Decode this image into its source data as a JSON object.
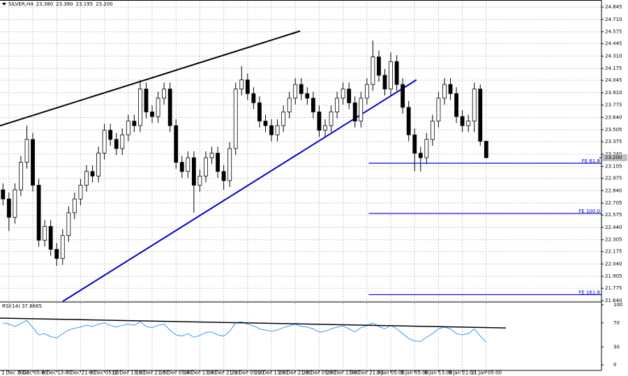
{
  "chart_data": {
    "type": "candlestick",
    "header_symbol": "SILVER,H4",
    "header_values": [
      "23.380",
      "23.380",
      "23.195",
      "23.200"
    ],
    "last_price_label": "23.200",
    "last_price": 23.2,
    "ylim": [
      21.632,
      24.922
    ],
    "yticks": [
      24.845,
      {
        "value": 24.71,
        "label": "24.710"
      },
      24.575,
      24.445,
      {
        "value": 24.31,
        "label": "24.310"
      },
      24.175,
      24.045,
      {
        "value": 23.91,
        "label": "23.910"
      },
      23.775,
      {
        "value": 23.64,
        "label": "23.640"
      },
      23.505,
      23.375,
      {
        "value": 23.24,
        "label": "23.240"
      },
      23.105,
      22.975,
      {
        "value": 22.84,
        "label": "22.840"
      },
      22.705,
      22.575,
      {
        "value": 22.44,
        "label": "22.440"
      },
      22.305,
      22.175,
      {
        "value": 22.04,
        "label": "22.040"
      },
      21.905,
      21.775,
      {
        "value": 21.64,
        "label": "21.640"
      }
    ],
    "xticks": [
      {
        "value": 1,
        "label": "1 Dec 2022"
      },
      {
        "value": 5,
        "label": "5 Dec 05:00"
      },
      {
        "value": 9,
        "label": "6 Dec 13:00"
      },
      {
        "value": 13,
        "label": "7 Dec 21:00"
      },
      {
        "value": 17,
        "label": "9 Dec 05:00"
      },
      {
        "value": 21,
        "label": "12 Dec 13:00"
      },
      {
        "value": 25,
        "label": "13 Dec 21:00"
      },
      {
        "value": 29,
        "label": "15 Dec 05:00"
      },
      {
        "value": 33,
        "label": "16 Dec 13:00"
      },
      {
        "value": 37,
        "label": "19 Dec 21:00"
      },
      {
        "value": 41,
        "label": "21 Dec 05:00"
      },
      {
        "value": 45,
        "label": "22 Dec 13:00"
      },
      {
        "value": 49,
        "label": "23 Dec 21:00"
      },
      {
        "value": 53,
        "label": "28 Dec 05:00"
      },
      {
        "value": 57,
        "label": "29 Dec 13:00"
      },
      {
        "value": 61,
        "label": "30 Dec 21:00"
      },
      {
        "value": 65,
        "label": "3 Jan 05:00"
      },
      {
        "value": 69,
        "label": "5 Jan 05:00"
      },
      {
        "value": 73,
        "label": "6 Jan 13:00"
      },
      {
        "value": 77,
        "label": "9 Jan 21:00"
      },
      {
        "value": 81,
        "label": "11 Jan 05:00"
      }
    ],
    "grid": true,
    "open": [
      22.85,
      22.75,
      22.55,
      22.85,
      23.15,
      23.4,
      22.9,
      22.3,
      22.45,
      22.2,
      22.1,
      22.35,
      22.6,
      22.75,
      22.9,
      23.05,
      23.0,
      23.25,
      23.5,
      23.4,
      23.3,
      23.45,
      23.6,
      23.55,
      23.95,
      23.7,
      23.65,
      23.85,
      23.95,
      23.55,
      23.15,
      23.05,
      23.2,
      22.9,
      23.0,
      23.2,
      23.25,
      23.05,
      22.95,
      23.3,
      23.95,
      24.05,
      23.9,
      23.8,
      23.6,
      23.55,
      23.45,
      23.55,
      23.7,
      23.85,
      24.0,
      23.9,
      23.85,
      23.7,
      23.5,
      23.55,
      23.7,
      23.85,
      23.95,
      23.8,
      23.6,
      23.85,
      24.0,
      24.3,
      24.1,
      23.95,
      24.25,
      24.0,
      23.75,
      23.45,
      23.25,
      23.2,
      23.4,
      23.6,
      23.85,
      24.0,
      23.9,
      23.65,
      23.55,
      23.6,
      23.95,
      23.38
    ],
    "high": [
      22.92,
      22.82,
      22.92,
      23.22,
      23.55,
      23.47,
      22.97,
      22.52,
      22.52,
      22.27,
      22.42,
      22.67,
      22.82,
      22.97,
      23.12,
      23.12,
      23.32,
      23.57,
      23.57,
      23.47,
      23.52,
      23.67,
      23.67,
      24.05,
      24.02,
      23.77,
      23.92,
      24.02,
      24.02,
      23.62,
      23.22,
      23.27,
      23.27,
      23.07,
      23.27,
      23.32,
      23.32,
      23.12,
      23.37,
      24.02,
      24.2,
      24.12,
      23.97,
      23.87,
      23.67,
      23.62,
      23.62,
      23.77,
      23.92,
      24.07,
      24.07,
      23.97,
      23.92,
      23.77,
      23.62,
      23.77,
      23.92,
      24.02,
      24.02,
      23.87,
      23.92,
      24.07,
      24.48,
      24.37,
      24.17,
      24.35,
      24.32,
      24.07,
      23.82,
      23.52,
      23.32,
      23.47,
      23.67,
      23.92,
      24.07,
      24.07,
      23.97,
      23.72,
      23.67,
      24.02,
      24.0,
      23.38
    ],
    "low": [
      22.68,
      22.4,
      22.48,
      22.78,
      23.08,
      22.83,
      22.23,
      22.23,
      22.13,
      22.02,
      22.03,
      22.28,
      22.53,
      22.68,
      22.83,
      22.93,
      22.93,
      23.18,
      23.33,
      23.23,
      23.23,
      23.38,
      23.48,
      23.48,
      23.63,
      23.58,
      23.58,
      23.78,
      23.48,
      23.08,
      22.98,
      22.98,
      22.6,
      22.83,
      22.93,
      23.13,
      22.98,
      22.85,
      22.88,
      23.23,
      23.88,
      23.83,
      23.73,
      23.53,
      23.48,
      23.38,
      23.38,
      23.48,
      23.63,
      23.78,
      23.83,
      23.78,
      23.63,
      23.43,
      23.43,
      23.48,
      23.63,
      23.78,
      23.73,
      23.53,
      23.53,
      23.78,
      23.93,
      24.03,
      23.88,
      23.88,
      23.93,
      23.68,
      23.38,
      23.05,
      23.05,
      23.13,
      23.33,
      23.53,
      23.78,
      23.83,
      23.58,
      23.48,
      23.48,
      23.48,
      23.33,
      23.195
    ],
    "close": [
      22.75,
      22.55,
      22.85,
      23.15,
      23.4,
      22.9,
      22.3,
      22.45,
      22.2,
      22.1,
      22.35,
      22.6,
      22.75,
      22.9,
      23.05,
      23.0,
      23.25,
      23.5,
      23.4,
      23.3,
      23.45,
      23.6,
      23.55,
      23.95,
      23.7,
      23.65,
      23.85,
      23.95,
      23.55,
      23.15,
      23.05,
      23.2,
      22.9,
      23.0,
      23.2,
      23.25,
      23.05,
      22.95,
      23.3,
      23.95,
      24.05,
      23.9,
      23.8,
      23.6,
      23.55,
      23.45,
      23.55,
      23.7,
      23.85,
      24.0,
      23.9,
      23.85,
      23.7,
      23.5,
      23.55,
      23.7,
      23.85,
      23.95,
      23.8,
      23.6,
      23.85,
      24.0,
      24.3,
      24.1,
      23.95,
      24.25,
      24.0,
      23.75,
      23.45,
      23.25,
      23.2,
      23.4,
      23.6,
      23.85,
      24.0,
      23.9,
      23.65,
      23.55,
      23.6,
      23.95,
      23.38,
      23.2
    ],
    "up_color": "#ffffff",
    "down_color": "#000000",
    "trendlines": [
      {
        "color": "#000000",
        "x": [
          -0.5,
          49.8
        ],
        "y": [
          23.549,
          24.583
        ]
      },
      {
        "color": "#0000cc",
        "x": [
          10.03,
          69.3
        ],
        "y": [
          21.632,
          24.05
        ]
      }
    ],
    "fe_levels": [
      {
        "label": "FE 61.8",
        "value": 23.14,
        "start": 61.3
      },
      {
        "label": "FE 100.0",
        "value": 22.592,
        "start": 61.3
      },
      {
        "label": "FE 161.8",
        "value": 21.705,
        "start": 61.3
      }
    ],
    "fe_color": "#0000dd",
    "rsi": {
      "label": "RSI(14) 37.8665",
      "color": "#3399ff",
      "ylim": [
        -8,
        103.5
      ],
      "yticks": [
        100,
        70,
        30,
        0
      ],
      "values": [
        70,
        68,
        64,
        69,
        74,
        62,
        50,
        52,
        47,
        45,
        52,
        58,
        61,
        63,
        66,
        64,
        68,
        70,
        66,
        63,
        66,
        68,
        66,
        72,
        64,
        62,
        66,
        68,
        58,
        50,
        48,
        52,
        46,
        49,
        54,
        55,
        50,
        48,
        56,
        70,
        72,
        68,
        65,
        60,
        58,
        56,
        58,
        62,
        65,
        68,
        64,
        63,
        60,
        55,
        56,
        60,
        63,
        65,
        60,
        55,
        62,
        65,
        70,
        64,
        60,
        66,
        60,
        52,
        44,
        40,
        39,
        46,
        52,
        60,
        63,
        60,
        52,
        50,
        52,
        60,
        48,
        37.8665
      ],
      "trendline": {
        "color": "#000000",
        "x": [
          -0.5,
          84.3
        ],
        "y": [
          77.9,
          61.6
        ]
      }
    }
  }
}
